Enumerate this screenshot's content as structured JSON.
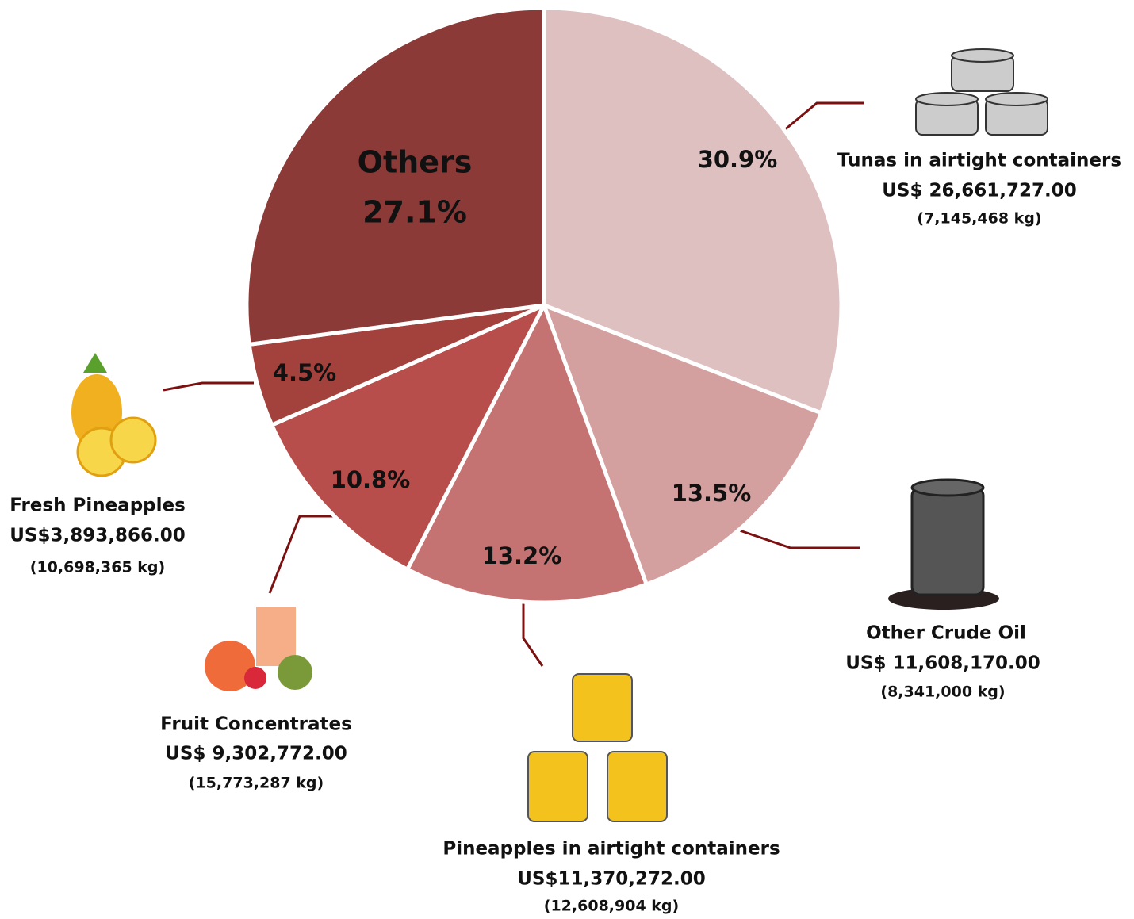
{
  "chart_data": {
    "type": "pie",
    "categories": [
      "Tunas in airtight containers",
      "Other Crude Oil",
      "Pineapples in airtight containers",
      "Fruit Concentrates",
      "Fresh Pineapples",
      "Others"
    ],
    "values": [
      30.9,
      13.5,
      13.2,
      10.8,
      4.5,
      27.1
    ],
    "value_labels": [
      "30.9%",
      "13.5%",
      "13.2%",
      "10.8%",
      "4.5%",
      "27.1%"
    ],
    "amounts": [
      "US$ 26,661,727.00",
      "US$ 11,608,170.00",
      "US$11,370,272.00",
      "US$ 9,302,772.00",
      "US$3,893,866.00",
      null
    ],
    "weights": [
      "(7,145,468 kg)",
      "(8,341,000 kg)",
      "(12,608,904 kg)",
      "(15,773,287 kg)",
      "(10,698,365 kg)",
      null
    ],
    "colors": [
      "#dfc0c1",
      "#d4a09f",
      "#c57372",
      "#b84e4b",
      "#a3413d",
      "#8b3a37"
    ]
  }
}
